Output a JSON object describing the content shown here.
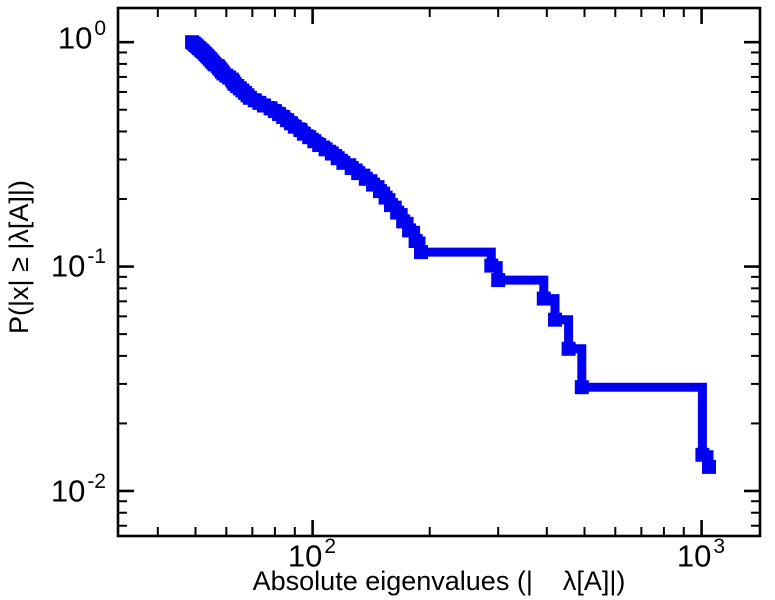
{
  "chart_data": {
    "type": "line",
    "subtype": "ccdf-step",
    "xscale": "log",
    "yscale": "log",
    "title": "",
    "xlabel": "Absolute eigenvalues (|    λ[A]|)",
    "ylabel": "P(|x| ≥ |λ[A]|)",
    "xlim": [
      31.6,
      1413
    ],
    "ylim": [
      0.0063,
      1.42
    ],
    "line_color": "#0202f2",
    "axis_color": "#000000",
    "background_color": "#ffffff",
    "x_ticks": [
      {
        "base": "10",
        "exp": "2",
        "value": 100
      },
      {
        "base": "10",
        "exp": "3",
        "value": 1000
      }
    ],
    "y_ticks": [
      {
        "base": "10",
        "exp": "0",
        "value": 1
      },
      {
        "base": "10",
        "exp": "-1",
        "value": 0.1
      },
      {
        "base": "10",
        "exp": "-2",
        "value": 0.01
      }
    ],
    "points": [
      [
        49,
        1.0
      ],
      [
        49.5,
        0.986
      ],
      [
        50,
        0.971
      ],
      [
        50.5,
        0.957
      ],
      [
        51,
        0.942
      ],
      [
        51.5,
        0.928
      ],
      [
        52,
        0.913
      ],
      [
        52.5,
        0.899
      ],
      [
        53,
        0.884
      ],
      [
        53.5,
        0.87
      ],
      [
        54,
        0.855
      ],
      [
        54.5,
        0.841
      ],
      [
        55,
        0.826
      ],
      [
        55.5,
        0.812
      ],
      [
        56,
        0.797
      ],
      [
        57,
        0.783
      ],
      [
        57.5,
        0.768
      ],
      [
        58,
        0.754
      ],
      [
        58.5,
        0.739
      ],
      [
        59,
        0.725
      ],
      [
        60,
        0.71
      ],
      [
        61,
        0.696
      ],
      [
        62,
        0.681
      ],
      [
        62.5,
        0.667
      ],
      [
        63,
        0.652
      ],
      [
        64,
        0.638
      ],
      [
        65,
        0.623
      ],
      [
        66,
        0.609
      ],
      [
        67,
        0.594
      ],
      [
        68,
        0.58
      ],
      [
        69,
        0.565
      ],
      [
        71,
        0.551
      ],
      [
        73,
        0.536
      ],
      [
        75,
        0.522
      ],
      [
        78,
        0.507
      ],
      [
        80,
        0.493
      ],
      [
        82,
        0.478
      ],
      [
        84,
        0.464
      ],
      [
        86,
        0.449
      ],
      [
        88,
        0.435
      ],
      [
        90,
        0.42
      ],
      [
        93,
        0.406
      ],
      [
        95,
        0.391
      ],
      [
        98,
        0.377
      ],
      [
        101,
        0.362
      ],
      [
        104,
        0.348
      ],
      [
        108,
        0.333
      ],
      [
        112,
        0.319
      ],
      [
        116,
        0.304
      ],
      [
        120,
        0.29
      ],
      [
        126,
        0.275
      ],
      [
        131,
        0.261
      ],
      [
        137,
        0.246
      ],
      [
        143,
        0.232
      ],
      [
        149,
        0.217
      ],
      [
        154,
        0.203
      ],
      [
        159,
        0.188
      ],
      [
        165,
        0.174
      ],
      [
        171,
        0.159
      ],
      [
        177,
        0.145
      ],
      [
        184,
        0.13
      ],
      [
        190,
        0.116
      ],
      [
        288,
        0.101
      ],
      [
        300,
        0.087
      ],
      [
        393,
        0.072
      ],
      [
        420,
        0.058
      ],
      [
        455,
        0.043
      ],
      [
        492,
        0.029
      ],
      [
        1005,
        0.0145
      ],
      [
        1045,
        0.0128
      ]
    ]
  }
}
